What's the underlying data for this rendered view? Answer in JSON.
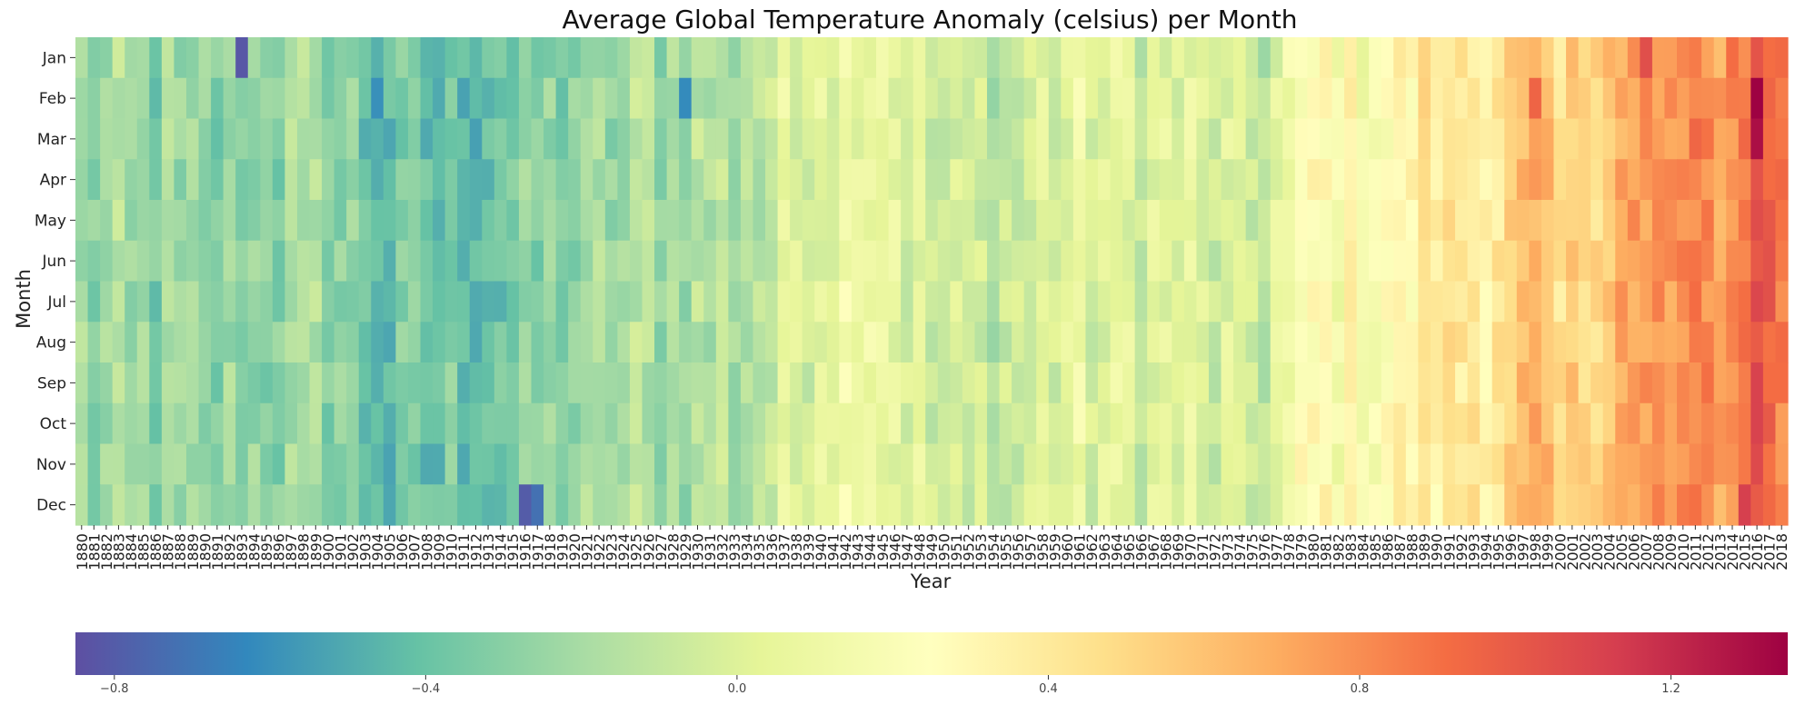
{
  "chart_data": {
    "type": "heatmap",
    "title": "Average Global Temperature Anomaly (celsius) per Month",
    "xlabel": "Year",
    "ylabel": "Month",
    "x_start": 1880,
    "x_end": 2018,
    "months": [
      "Jan",
      "Feb",
      "Mar",
      "Apr",
      "May",
      "Jun",
      "Jul",
      "Aug",
      "Sep",
      "Oct",
      "Nov",
      "Dec"
    ],
    "colorbar": {
      "min": -0.85,
      "max": 1.35,
      "ticks": [
        -0.8,
        -0.4,
        0.0,
        0.4,
        0.8,
        1.2
      ],
      "tick_labels": [
        "−0.8",
        "−0.4",
        "0.0",
        "0.4",
        "0.8",
        "1.2"
      ],
      "orientation": "horizontal",
      "placement": "bottom"
    },
    "colormap": "Spectral_r",
    "colormap_stops": [
      "#5e4fa2",
      "#3288bd",
      "#66c2a5",
      "#abdda4",
      "#e6f598",
      "#ffffbf",
      "#fee08b",
      "#fdae61",
      "#f46d43",
      "#d53e4f",
      "#9e0142"
    ],
    "trend_keypoints": [
      [
        1880,
        -0.24
      ],
      [
        1890,
        -0.3
      ],
      [
        1900,
        -0.22
      ],
      [
        1904,
        -0.42
      ],
      [
        1910,
        -0.38
      ],
      [
        1916,
        -0.35
      ],
      [
        1925,
        -0.2
      ],
      [
        1935,
        -0.12
      ],
      [
        1940,
        0.1
      ],
      [
        1944,
        0.15
      ],
      [
        1950,
        -0.1
      ],
      [
        1955,
        -0.08
      ],
      [
        1960,
        0.02
      ],
      [
        1970,
        0.0
      ],
      [
        1976,
        -0.08
      ],
      [
        1980,
        0.25
      ],
      [
        1985,
        0.22
      ],
      [
        1990,
        0.4
      ],
      [
        1995,
        0.45
      ],
      [
        1998,
        0.62
      ],
      [
        2000,
        0.42
      ],
      [
        2005,
        0.7
      ],
      [
        2010,
        0.75
      ],
      [
        2014,
        0.8
      ],
      [
        2016,
        1.05
      ],
      [
        2018,
        0.88
      ]
    ],
    "notable_cells": [
      {
        "year": 1893,
        "month": "Jan",
        "value": -0.82
      },
      {
        "year": 1904,
        "month": "Feb",
        "value": -0.6
      },
      {
        "year": 1916,
        "month": "Dec",
        "value": -0.8
      },
      {
        "year": 1917,
        "month": "Dec",
        "value": -0.72
      },
      {
        "year": 1929,
        "month": "Feb",
        "value": -0.62
      },
      {
        "year": 1998,
        "month": "Feb",
        "value": 0.95
      },
      {
        "year": 2007,
        "month": "Jan",
        "value": 1.05
      },
      {
        "year": 2016,
        "month": "Feb",
        "value": 1.35
      },
      {
        "year": 2016,
        "month": "Mar",
        "value": 1.3
      },
      {
        "year": 2015,
        "month": "Dec",
        "value": 1.12
      }
    ]
  }
}
